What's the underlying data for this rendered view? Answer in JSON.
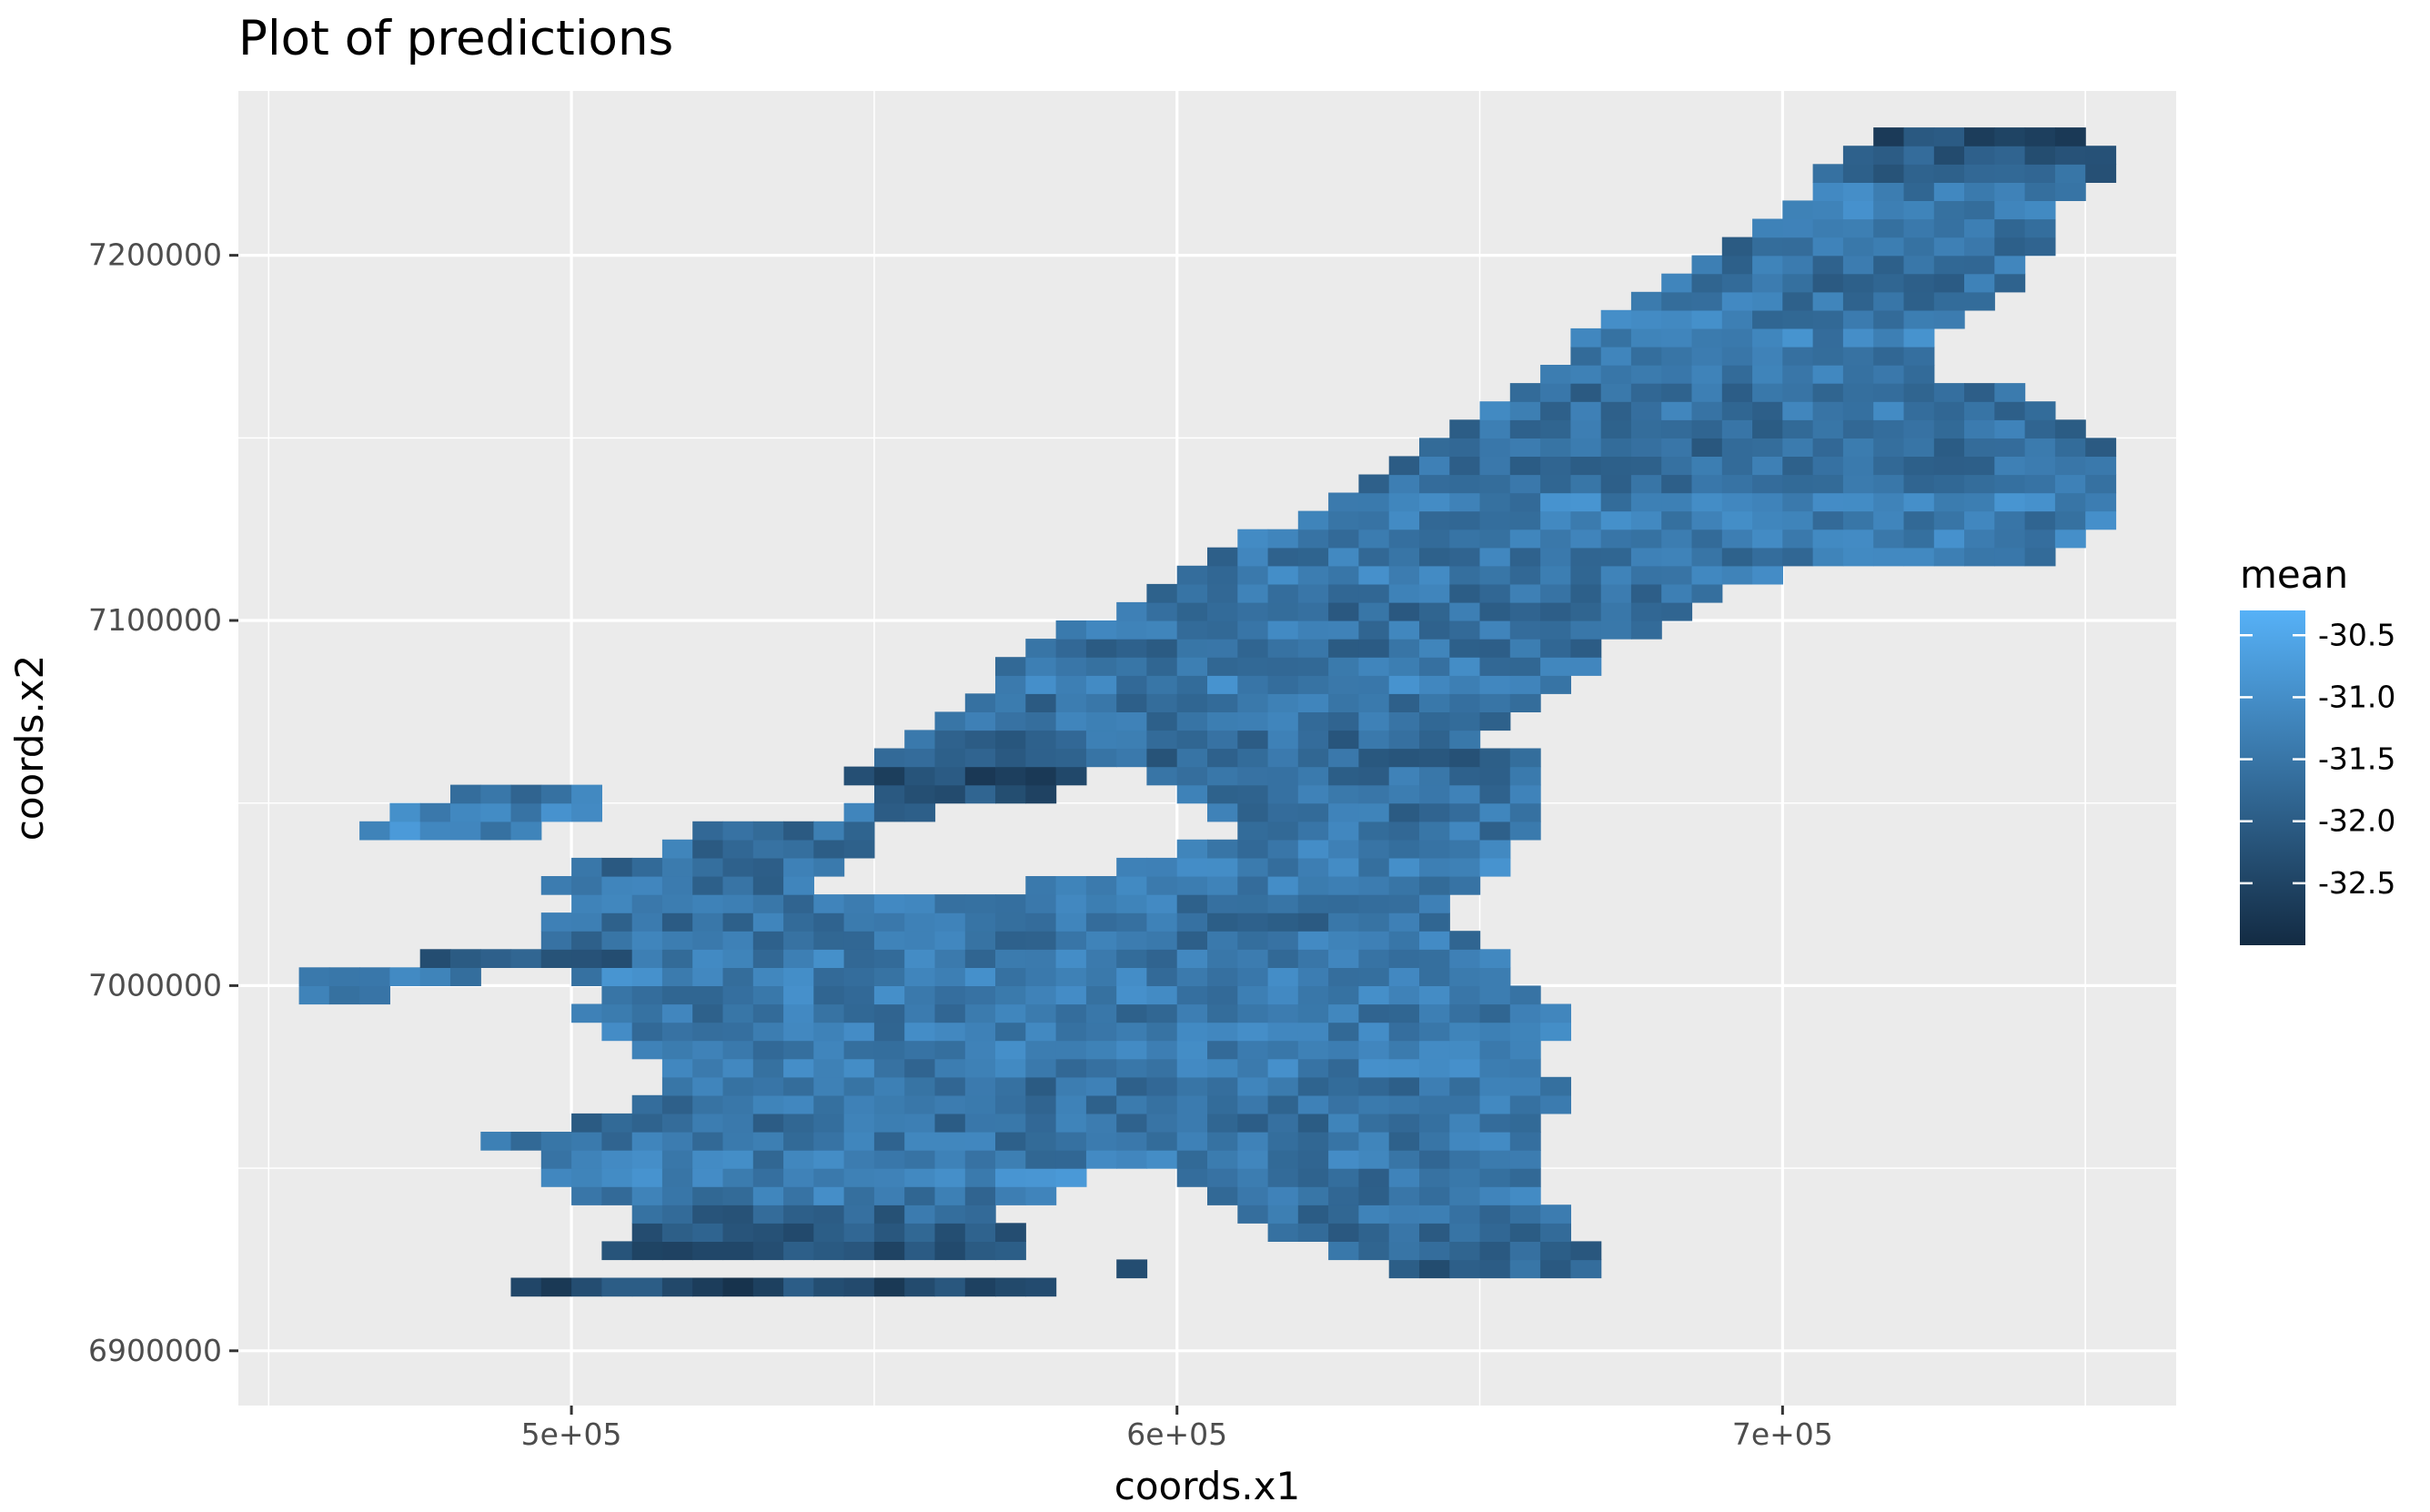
{
  "chart_data": {
    "type": "heatmap",
    "title": "Plot of predictions",
    "xlabel": "coords.x1",
    "ylabel": "coords.x2",
    "xlim": [
      445000,
      765000
    ],
    "ylim": [
      6885000,
      7245000
    ],
    "x_ticks": [
      {
        "value": 500000,
        "label": "5e+05"
      },
      {
        "value": 600000,
        "label": "6e+05"
      },
      {
        "value": 700000,
        "label": "7e+05"
      }
    ],
    "y_ticks": [
      {
        "value": 6900000,
        "label": "6900000"
      },
      {
        "value": 7000000,
        "label": "7000000"
      },
      {
        "value": 7100000,
        "label": "7100000"
      },
      {
        "value": 7200000,
        "label": "7200000"
      }
    ],
    "grid": true,
    "cell_size": 5000,
    "fill_variable": "mean",
    "legend": {
      "title": "mean",
      "position": "right",
      "range": [
        -33.0,
        -30.3
      ],
      "breaks": [
        {
          "value": -30.5,
          "label": "-30.5"
        },
        {
          "value": -31.0,
          "label": "-31.0"
        },
        {
          "value": -31.5,
          "label": "-31.5"
        },
        {
          "value": -32.0,
          "label": "-32.0"
        },
        {
          "value": -32.5,
          "label": "-32.5"
        }
      ],
      "low_color": "#132b43",
      "high_color": "#56b1f7"
    },
    "mean_range_note_values": [
      -33.0,
      -30.3
    ],
    "region_rows": [
      {
        "y": 6915000,
        "segments": [
          [
            490000,
            580000,
            -32.4
          ]
        ]
      },
      {
        "y": 6920000,
        "segments": [
          [
            635000,
            670000,
            -31.9
          ],
          [
            590000,
            595000,
            -32.1
          ]
        ]
      },
      {
        "y": 6925000,
        "segments": [
          [
            505000,
            575000,
            -32.2
          ],
          [
            625000,
            670000,
            -31.8
          ]
        ]
      },
      {
        "y": 6930000,
        "segments": [
          [
            510000,
            575000,
            -32.0
          ],
          [
            615000,
            665000,
            -31.8
          ]
        ]
      },
      {
        "y": 6935000,
        "segments": [
          [
            510000,
            570000,
            -31.8
          ],
          [
            610000,
            665000,
            -31.6
          ]
        ]
      },
      {
        "y": 6940000,
        "segments": [
          [
            500000,
            580000,
            -31.4
          ],
          [
            605000,
            660000,
            -31.5
          ]
        ]
      },
      {
        "y": 6945000,
        "segments": [
          [
            495000,
            585000,
            -31.2
          ],
          [
            600000,
            660000,
            -31.6
          ]
        ]
      },
      {
        "y": 6950000,
        "segments": [
          [
            495000,
            660000,
            -31.4
          ]
        ]
      },
      {
        "y": 6955000,
        "segments": [
          [
            485000,
            660000,
            -31.5
          ]
        ]
      },
      {
        "y": 6960000,
        "segments": [
          [
            500000,
            660000,
            -31.6
          ]
        ]
      },
      {
        "y": 6965000,
        "segments": [
          [
            510000,
            665000,
            -31.5
          ]
        ]
      },
      {
        "y": 6970000,
        "segments": [
          [
            515000,
            665000,
            -31.6
          ]
        ]
      },
      {
        "y": 6975000,
        "segments": [
          [
            515000,
            660000,
            -31.4
          ]
        ]
      },
      {
        "y": 6980000,
        "segments": [
          [
            510000,
            660000,
            -31.3
          ]
        ]
      },
      {
        "y": 6985000,
        "segments": [
          [
            505000,
            665000,
            -31.4
          ]
        ]
      },
      {
        "y": 6990000,
        "segments": [
          [
            500000,
            665000,
            -31.5
          ]
        ]
      },
      {
        "y": 6995000,
        "segments": [
          [
            455000,
            470000,
            -31.3
          ],
          [
            505000,
            660000,
            -31.4
          ]
        ]
      },
      {
        "y": 7000000,
        "segments": [
          [
            455000,
            485000,
            -31.5
          ],
          [
            500000,
            655000,
            -31.3
          ]
        ]
      },
      {
        "y": 7005000,
        "segments": [
          [
            475000,
            510000,
            -32.0
          ],
          [
            510000,
            655000,
            -31.4
          ]
        ]
      },
      {
        "y": 7010000,
        "segments": [
          [
            495000,
            650000,
            -31.5
          ]
        ]
      },
      {
        "y": 7015000,
        "segments": [
          [
            495000,
            645000,
            -31.6
          ]
        ]
      },
      {
        "y": 7020000,
        "segments": [
          [
            500000,
            645000,
            -31.5
          ]
        ]
      },
      {
        "y": 7025000,
        "segments": [
          [
            495000,
            540000,
            -31.6
          ],
          [
            575000,
            650000,
            -31.4
          ]
        ]
      },
      {
        "y": 7030000,
        "segments": [
          [
            500000,
            545000,
            -31.7
          ],
          [
            590000,
            655000,
            -31.3
          ]
        ]
      },
      {
        "y": 7035000,
        "segments": [
          [
            515000,
            550000,
            -31.6
          ],
          [
            600000,
            655000,
            -31.4
          ]
        ]
      },
      {
        "y": 7040000,
        "segments": [
          [
            465000,
            495000,
            -31.2
          ],
          [
            520000,
            550000,
            -31.7
          ],
          [
            610000,
            660000,
            -31.5
          ]
        ]
      },
      {
        "y": 7045000,
        "segments": [
          [
            470000,
            505000,
            -31.3
          ],
          [
            545000,
            560000,
            -31.6
          ],
          [
            605000,
            660000,
            -31.6
          ]
        ]
      },
      {
        "y": 7050000,
        "segments": [
          [
            480000,
            505000,
            -31.4
          ],
          [
            550000,
            580000,
            -32.2
          ],
          [
            600000,
            660000,
            -31.6
          ]
        ]
      },
      {
        "y": 7055000,
        "segments": [
          [
            545000,
            585000,
            -32.3
          ],
          [
            595000,
            660000,
            -31.6
          ]
        ]
      },
      {
        "y": 7060000,
        "segments": [
          [
            550000,
            660000,
            -31.8
          ]
        ]
      },
      {
        "y": 7065000,
        "segments": [
          [
            555000,
            650000,
            -31.7
          ]
        ]
      },
      {
        "y": 7070000,
        "segments": [
          [
            560000,
            655000,
            -31.5
          ]
        ]
      },
      {
        "y": 7075000,
        "segments": [
          [
            565000,
            660000,
            -31.6
          ]
        ]
      },
      {
        "y": 7080000,
        "segments": [
          [
            570000,
            665000,
            -31.3
          ]
        ]
      },
      {
        "y": 7085000,
        "segments": [
          [
            570000,
            670000,
            -31.4
          ]
        ]
      },
      {
        "y": 7090000,
        "segments": [
          [
            575000,
            670000,
            -31.6
          ]
        ]
      },
      {
        "y": 7095000,
        "segments": [
          [
            580000,
            680000,
            -31.5
          ]
        ]
      },
      {
        "y": 7100000,
        "segments": [
          [
            590000,
            685000,
            -31.7
          ]
        ]
      },
      {
        "y": 7105000,
        "segments": [
          [
            595000,
            690000,
            -31.6
          ]
        ]
      },
      {
        "y": 7110000,
        "segments": [
          [
            600000,
            700000,
            -31.4
          ]
        ]
      },
      {
        "y": 7115000,
        "segments": [
          [
            605000,
            745000,
            -31.5
          ]
        ]
      },
      {
        "y": 7120000,
        "segments": [
          [
            610000,
            750000,
            -31.3
          ]
        ]
      },
      {
        "y": 7125000,
        "segments": [
          [
            620000,
            755000,
            -31.4
          ]
        ]
      },
      {
        "y": 7130000,
        "segments": [
          [
            625000,
            755000,
            -31.3
          ]
        ]
      },
      {
        "y": 7135000,
        "segments": [
          [
            630000,
            755000,
            -31.5
          ]
        ]
      },
      {
        "y": 7140000,
        "segments": [
          [
            635000,
            755000,
            -31.6
          ]
        ]
      },
      {
        "y": 7145000,
        "segments": [
          [
            640000,
            755000,
            -31.7
          ]
        ]
      },
      {
        "y": 7150000,
        "segments": [
          [
            645000,
            750000,
            -31.6
          ]
        ]
      },
      {
        "y": 7155000,
        "segments": [
          [
            650000,
            745000,
            -31.5
          ]
        ]
      },
      {
        "y": 7160000,
        "segments": [
          [
            655000,
            740000,
            -31.6
          ]
        ]
      },
      {
        "y": 7165000,
        "segments": [
          [
            660000,
            725000,
            -31.5
          ]
        ]
      },
      {
        "y": 7170000,
        "segments": [
          [
            665000,
            725000,
            -31.4
          ]
        ]
      },
      {
        "y": 7175000,
        "segments": [
          [
            665000,
            725000,
            -31.3
          ]
        ]
      },
      {
        "y": 7180000,
        "segments": [
          [
            670000,
            730000,
            -31.4
          ]
        ]
      },
      {
        "y": 7185000,
        "segments": [
          [
            675000,
            735000,
            -31.5
          ]
        ]
      },
      {
        "y": 7190000,
        "segments": [
          [
            680000,
            740000,
            -31.6
          ]
        ]
      },
      {
        "y": 7195000,
        "segments": [
          [
            685000,
            740000,
            -31.5
          ]
        ]
      },
      {
        "y": 7200000,
        "segments": [
          [
            690000,
            745000,
            -31.6
          ]
        ]
      },
      {
        "y": 7205000,
        "segments": [
          [
            695000,
            745000,
            -31.5
          ]
        ]
      },
      {
        "y": 7210000,
        "segments": [
          [
            700000,
            745000,
            -31.3
          ]
        ]
      },
      {
        "y": 7215000,
        "segments": [
          [
            705000,
            750000,
            -31.4
          ]
        ]
      },
      {
        "y": 7220000,
        "segments": [
          [
            705000,
            755000,
            -31.8
          ]
        ]
      },
      {
        "y": 7225000,
        "segments": [
          [
            710000,
            755000,
            -32.0
          ]
        ]
      },
      {
        "y": 7230000,
        "segments": [
          [
            715000,
            750000,
            -32.3
          ]
        ]
      }
    ]
  }
}
